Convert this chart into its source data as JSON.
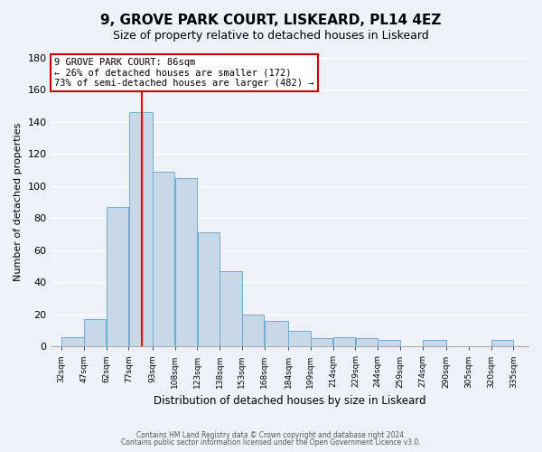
{
  "title": "9, GROVE PARK COURT, LISKEARD, PL14 4EZ",
  "subtitle": "Size of property relative to detached houses in Liskeard",
  "xlabel": "Distribution of detached houses by size in Liskeard",
  "ylabel": "Number of detached properties",
  "bar_color": "#c8d8e8",
  "bar_edge_color": "#6baed6",
  "bar_left_edges": [
    32,
    47,
    62,
    77,
    93,
    108,
    123,
    138,
    153,
    168,
    184,
    199,
    214,
    229,
    244,
    259,
    274,
    290,
    305,
    320
  ],
  "bar_widths": [
    15,
    15,
    15,
    16,
    15,
    15,
    15,
    15,
    15,
    16,
    15,
    15,
    15,
    15,
    15,
    15,
    16,
    15,
    15,
    15
  ],
  "bar_heights": [
    6,
    17,
    87,
    146,
    109,
    105,
    71,
    47,
    20,
    16,
    10,
    5,
    6,
    5,
    4,
    0,
    4,
    0,
    0,
    4
  ],
  "xtick_labels": [
    "32sqm",
    "47sqm",
    "62sqm",
    "77sqm",
    "93sqm",
    "108sqm",
    "123sqm",
    "138sqm",
    "153sqm",
    "168sqm",
    "184sqm",
    "199sqm",
    "214sqm",
    "229sqm",
    "244sqm",
    "259sqm",
    "274sqm",
    "290sqm",
    "305sqm",
    "320sqm",
    "335sqm"
  ],
  "xtick_positions": [
    32,
    47,
    62,
    77,
    93,
    108,
    123,
    138,
    153,
    168,
    184,
    199,
    214,
    229,
    244,
    259,
    274,
    290,
    305,
    320,
    335
  ],
  "ylim": [
    0,
    180
  ],
  "xlim": [
    25,
    345
  ],
  "red_line_x": 86,
  "annotation_title": "9 GROVE PARK COURT: 86sqm",
  "annotation_line2": "← 26% of detached houses are smaller (172)",
  "annotation_line3": "73% of semi-detached houses are larger (482) →",
  "footer_line1": "Contains HM Land Registry data © Crown copyright and database right 2024.",
  "footer_line2": "Contains public sector information licensed under the Open Government Licence v3.0.",
  "background_color": "#eef2f7",
  "grid_color": "#ffffff"
}
